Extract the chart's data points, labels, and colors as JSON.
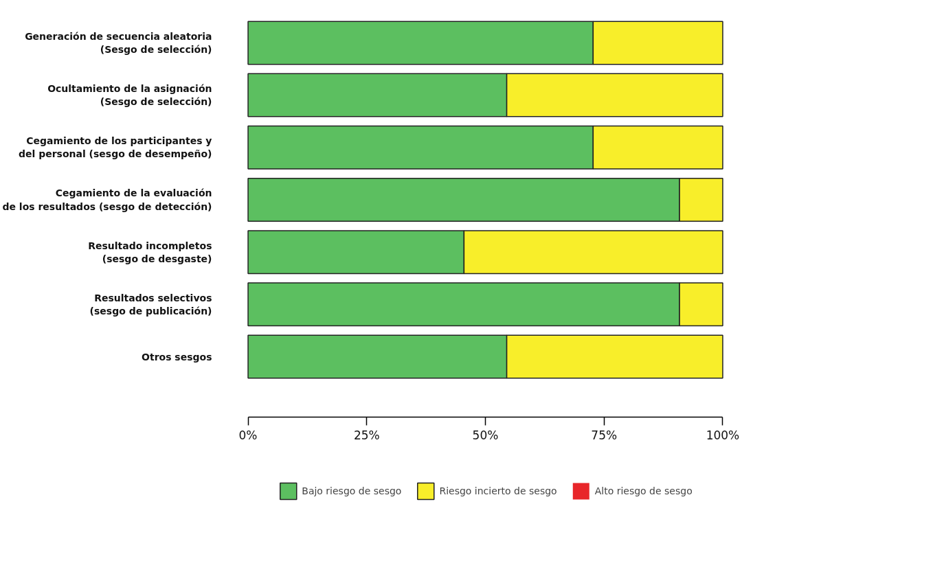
{
  "chart_data": {
    "type": "bar",
    "orientation": "horizontal",
    "stacked": true,
    "categories": [
      "Generación de secuencia aleatoria\n(Sesgo de selección)",
      "Ocultamiento de la asignación\n(Sesgo de selección)",
      "Cegamiento de los participantes y\ndel personal (sesgo de desempeño)",
      "Cegamiento de la evaluación\nde los resultados (sesgo de detección)",
      "Resultado incompletos\n(sesgo de desgaste)",
      "Resultados selectivos\n(sesgo de publicación)",
      "Otros sesgos"
    ],
    "series": [
      {
        "name": "Bajo riesgo de sesgo",
        "color": "#5cbf60",
        "values": [
          72.7,
          54.5,
          72.7,
          90.9,
          45.5,
          90.9,
          54.5
        ]
      },
      {
        "name": "Riesgo incierto de sesgo",
        "color": "#f8ee2a",
        "values": [
          27.3,
          45.5,
          27.3,
          9.1,
          54.5,
          9.1,
          45.5
        ]
      },
      {
        "name": "Alto riesgo de sesgo",
        "color": "#e8262a",
        "values": [
          0,
          0,
          0,
          0,
          0,
          0,
          0
        ]
      }
    ],
    "xlim": [
      0,
      100
    ],
    "xticks": [
      {
        "value": 0,
        "label": "0%"
      },
      {
        "value": 25,
        "label": "25%"
      },
      {
        "value": 50,
        "label": "50%"
      },
      {
        "value": 75,
        "label": "75%"
      },
      {
        "value": 100,
        "label": "100%"
      }
    ],
    "grid": false,
    "legend": "bottom"
  }
}
